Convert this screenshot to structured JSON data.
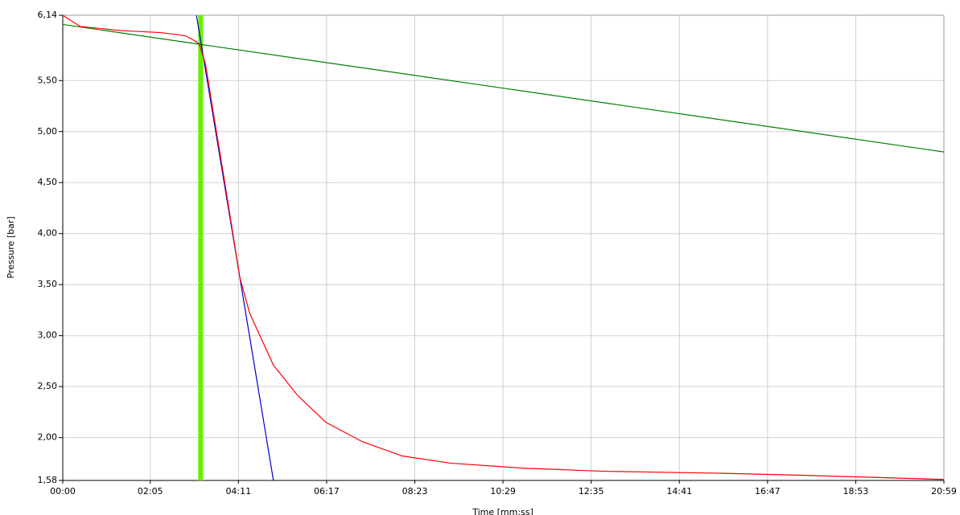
{
  "chart_data": {
    "type": "line",
    "y_label": "Pressure [bar]",
    "x_label": "Time [mm:ss]",
    "xlim": [
      0,
      1259
    ],
    "ylim": [
      1.58,
      6.14
    ],
    "xticks": [
      {
        "value": 0,
        "label": "00:00"
      },
      {
        "value": 125,
        "label": "02:05"
      },
      {
        "value": 251,
        "label": "04:11"
      },
      {
        "value": 377,
        "label": "06:17"
      },
      {
        "value": 503,
        "label": "08:23"
      },
      {
        "value": 629,
        "label": "10:29"
      },
      {
        "value": 755,
        "label": "12:35"
      },
      {
        "value": 881,
        "label": "14:41"
      },
      {
        "value": 1007,
        "label": "16:47"
      },
      {
        "value": 1133,
        "label": "18:53"
      },
      {
        "value": 1259,
        "label": "20:59"
      }
    ],
    "yticks": [
      {
        "value": 1.58,
        "label": "1,58"
      },
      {
        "value": 2.0,
        "label": "2,00"
      },
      {
        "value": 2.5,
        "label": "2,50"
      },
      {
        "value": 3.0,
        "label": "3,00"
      },
      {
        "value": 3.5,
        "label": "3,50"
      },
      {
        "value": 4.0,
        "label": "4,00"
      },
      {
        "value": 4.5,
        "label": "4,50"
      },
      {
        "value": 5.0,
        "label": "5,00"
      },
      {
        "value": 5.5,
        "label": "5,50"
      },
      {
        "value": 6.14,
        "label": "6,14"
      }
    ],
    "grid": true,
    "series": [
      {
        "color": "#008000",
        "x": [
          0,
          1259
        ],
        "values": [
          6.05,
          4.8
        ]
      },
      {
        "color": "#0000cc",
        "x": [
          191,
          301
        ],
        "values": [
          6.14,
          1.58
        ]
      },
      {
        "color": "#ff0000",
        "x": [
          0,
          25,
          83,
          140,
          175,
          186,
          195,
          204,
          215,
          232,
          253,
          267,
          301,
          336,
          376,
          428,
          485,
          554,
          658,
          773,
          945,
          1060,
          1259
        ],
        "values": [
          6.14,
          6.03,
          5.99,
          5.97,
          5.94,
          5.9,
          5.86,
          5.66,
          5.19,
          4.48,
          3.57,
          3.22,
          2.71,
          2.41,
          2.15,
          1.96,
          1.82,
          1.75,
          1.7,
          1.67,
          1.65,
          1.63,
          1.59
        ]
      }
    ],
    "marker_x": 197,
    "marker_color": "#66ee00"
  }
}
